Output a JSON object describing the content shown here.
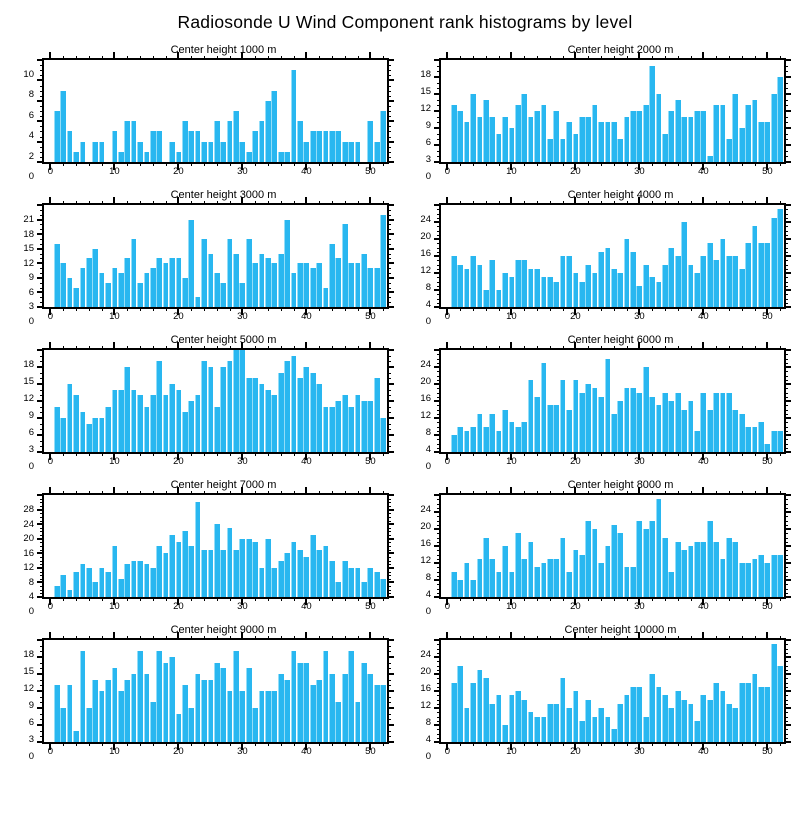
{
  "page_title": "Radiosonde U Wind Component rank histograms by level",
  "figure": {
    "bar_fill": "#29B7F0",
    "bar_highlight": "#93DDF8",
    "axis_color": "#000000",
    "x_axis": {
      "tick_labels": [
        0,
        10,
        20,
        30,
        40,
        50
      ],
      "minor_step": 2,
      "xmin": -1,
      "xmax": 52.6
    }
  },
  "chart_data": [
    {
      "type": "bar",
      "title": "Center height 1000 m",
      "xlabel": "",
      "ylabel": "",
      "ylim": [
        0,
        10
      ],
      "ytick_step": 2,
      "ytick_minor_step": 0.5,
      "x_ticks": [
        0,
        10,
        20,
        30,
        40,
        50
      ],
      "ranks_start": 1,
      "values": [
        5,
        7,
        3,
        1,
        2,
        0,
        2,
        2,
        0,
        3,
        1,
        4,
        4,
        2,
        1,
        3,
        3,
        0,
        2,
        1,
        4,
        3,
        3,
        2,
        2,
        4,
        2,
        4,
        5,
        2,
        1,
        3,
        4,
        6,
        7,
        1,
        1,
        9,
        4,
        2,
        3,
        3,
        3,
        3,
        3,
        2,
        2,
        2,
        0,
        4,
        2,
        5
      ]
    },
    {
      "type": "bar",
      "title": "Center height 2000 m",
      "xlabel": "",
      "ylabel": "",
      "ylim": [
        0,
        18
      ],
      "ytick_step": 3,
      "ytick_minor_step": 1,
      "x_ticks": [
        0,
        10,
        20,
        30,
        40,
        50
      ],
      "ranks_start": 1,
      "values": [
        10,
        9,
        7,
        12,
        8,
        11,
        8,
        5,
        8,
        6,
        10,
        12,
        8,
        9,
        10,
        4,
        9,
        4,
        7,
        5,
        8,
        8,
        10,
        7,
        7,
        7,
        4,
        8,
        9,
        9,
        10,
        17,
        12,
        5,
        9,
        11,
        8,
        8,
        9,
        9,
        1,
        10,
        10,
        4,
        12,
        6,
        10,
        11,
        7,
        7,
        12,
        15
      ]
    },
    {
      "type": "bar",
      "title": "Center height 3000 m",
      "xlabel": "",
      "ylabel": "",
      "ylim": [
        0,
        21
      ],
      "ytick_step": 3,
      "ytick_minor_step": 1,
      "x_ticks": [
        0,
        10,
        20,
        30,
        40,
        50
      ],
      "ranks_start": 1,
      "values": [
        13,
        9,
        6,
        4,
        8,
        10,
        12,
        7,
        5,
        8,
        7,
        10,
        14,
        5,
        7,
        8,
        10,
        9,
        10,
        10,
        6,
        18,
        2,
        14,
        11,
        7,
        5,
        14,
        11,
        5,
        14,
        9,
        11,
        10,
        9,
        11,
        18,
        7,
        9,
        9,
        8,
        9,
        4,
        13,
        10,
        17,
        9,
        9,
        11,
        8,
        8,
        19
      ]
    },
    {
      "type": "bar",
      "title": "Center height 4000 m",
      "xlabel": "",
      "ylabel": "",
      "ylim": [
        0,
        24
      ],
      "ytick_step": 4,
      "ytick_minor_step": 1,
      "x_ticks": [
        0,
        10,
        20,
        30,
        40,
        50
      ],
      "ranks_start": 1,
      "values": [
        12,
        10,
        9,
        12,
        10,
        4,
        11,
        4,
        8,
        7,
        11,
        11,
        9,
        9,
        7,
        7,
        6,
        12,
        12,
        8,
        6,
        10,
        8,
        13,
        14,
        9,
        8,
        16,
        13,
        5,
        10,
        7,
        6,
        10,
        14,
        12,
        20,
        10,
        8,
        12,
        15,
        11,
        16,
        12,
        12,
        9,
        15,
        19,
        15,
        15,
        21,
        23
      ]
    },
    {
      "type": "bar",
      "title": "Center height 5000 m",
      "xlabel": "",
      "ylabel": "",
      "ylim": [
        0,
        18
      ],
      "ytick_step": 3,
      "ytick_minor_step": 1,
      "x_ticks": [
        0,
        10,
        20,
        30,
        40,
        50
      ],
      "ranks_start": 1,
      "values": [
        8,
        6,
        12,
        10,
        7,
        5,
        6,
        6,
        8,
        11,
        11,
        15,
        11,
        10,
        8,
        10,
        16,
        10,
        12,
        11,
        7,
        9,
        10,
        16,
        15,
        8,
        15,
        16,
        18,
        18,
        13,
        13,
        12,
        11,
        10,
        14,
        16,
        17,
        13,
        15,
        14,
        12,
        8,
        8,
        9,
        10,
        8,
        10,
        9,
        9,
        13,
        6
      ]
    },
    {
      "type": "bar",
      "title": "Center height 6000 m",
      "xlabel": "",
      "ylabel": "",
      "ylim": [
        0,
        24
      ],
      "ytick_step": 4,
      "ytick_minor_step": 1,
      "x_ticks": [
        0,
        10,
        20,
        30,
        40,
        50
      ],
      "ranks_start": 1,
      "values": [
        4,
        6,
        5,
        6,
        9,
        6,
        9,
        5,
        10,
        7,
        6,
        7,
        17,
        13,
        21,
        11,
        11,
        17,
        10,
        17,
        14,
        16,
        15,
        13,
        22,
        9,
        12,
        15,
        15,
        14,
        20,
        13,
        11,
        14,
        12,
        14,
        10,
        12,
        5,
        14,
        10,
        14,
        14,
        14,
        10,
        9,
        6,
        6,
        7,
        2,
        5,
        5
      ]
    },
    {
      "type": "bar",
      "title": "Center height 7000 m",
      "xlabel": "",
      "ylabel": "",
      "ylim": [
        0,
        28
      ],
      "ytick_step": 4,
      "ytick_minor_step": 1,
      "x_ticks": [
        0,
        10,
        20,
        30,
        40,
        50
      ],
      "ranks_start": 1,
      "values": [
        3,
        6,
        2,
        7,
        9,
        8,
        4,
        8,
        7,
        14,
        5,
        9,
        10,
        10,
        9,
        8,
        14,
        12,
        17,
        15,
        18,
        14,
        26,
        13,
        13,
        20,
        13,
        19,
        13,
        16,
        16,
        15,
        8,
        16,
        8,
        10,
        12,
        15,
        13,
        11,
        17,
        13,
        14,
        10,
        4,
        10,
        8,
        8,
        4,
        8,
        7,
        5
      ]
    },
    {
      "type": "bar",
      "title": "Center height 8000 m",
      "xlabel": "",
      "ylabel": "",
      "ylim": [
        0,
        24
      ],
      "ytick_step": 4,
      "ytick_minor_step": 1,
      "x_ticks": [
        0,
        10,
        20,
        30,
        40,
        50
      ],
      "ranks_start": 1,
      "values": [
        6,
        4,
        8,
        4,
        9,
        14,
        9,
        6,
        12,
        6,
        15,
        9,
        13,
        7,
        8,
        9,
        9,
        14,
        6,
        11,
        10,
        18,
        16,
        8,
        12,
        17,
        15,
        7,
        7,
        18,
        16,
        18,
        23,
        14,
        6,
        13,
        11,
        12,
        13,
        13,
        18,
        13,
        9,
        14,
        13,
        8,
        8,
        9,
        10,
        8,
        10,
        10
      ]
    },
    {
      "type": "bar",
      "title": "Center height 9000 m",
      "xlabel": "",
      "ylabel": "",
      "ylim": [
        0,
        18
      ],
      "ytick_step": 3,
      "ytick_minor_step": 1,
      "x_ticks": [
        0,
        10,
        20,
        30,
        40,
        50
      ],
      "ranks_start": 1,
      "values": [
        10,
        6,
        10,
        2,
        16,
        6,
        11,
        9,
        11,
        13,
        9,
        11,
        12,
        16,
        12,
        7,
        16,
        14,
        15,
        5,
        10,
        6,
        12,
        11,
        11,
        14,
        13,
        9,
        16,
        9,
        13,
        6,
        9,
        9,
        9,
        12,
        11,
        16,
        14,
        14,
        10,
        11,
        16,
        12,
        7,
        12,
        16,
        7,
        14,
        12,
        10,
        10
      ]
    },
    {
      "type": "bar",
      "title": "Center height 10000 m",
      "xlabel": "",
      "ylabel": "",
      "ylim": [
        0,
        24
      ],
      "ytick_step": 4,
      "ytick_minor_step": 1,
      "x_ticks": [
        0,
        10,
        20,
        30,
        40,
        50
      ],
      "ranks_start": 1,
      "values": [
        14,
        18,
        8,
        14,
        17,
        15,
        9,
        11,
        4,
        11,
        12,
        10,
        7,
        6,
        6,
        9,
        9,
        15,
        8,
        12,
        5,
        10,
        6,
        8,
        6,
        3,
        9,
        11,
        13,
        13,
        6,
        16,
        13,
        11,
        8,
        12,
        10,
        9,
        5,
        11,
        10,
        14,
        12,
        9,
        8,
        14,
        14,
        16,
        13,
        13,
        23,
        18
      ]
    }
  ]
}
